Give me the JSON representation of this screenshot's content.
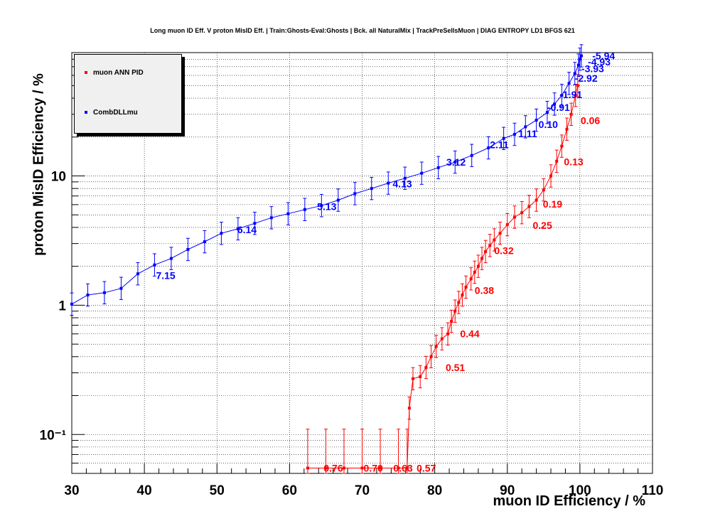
{
  "title": "Long muon ID Eff. V proton MisID Eff. | Train:Ghosts-Eval:Ghosts | Bck. all NaturalMix | TrackPreSellsMuon | DIAG ENTROPY LD1 BFGS 621",
  "legend": [
    {
      "label": "muon ANN PID",
      "color": "#ff0000"
    },
    {
      "label": "CombDLLmu",
      "color": "#0000ff"
    }
  ],
  "chart_data": {
    "type": "line",
    "title": "Long muon ID Eff. V proton MisID Eff. | Train:Ghosts-Eval:Ghosts | Bck. all NaturalMix | TrackPreSellsMuon | DIAG ENTROPY LD1 BFGS 621",
    "xlabel": "muon ID Efficiency / %",
    "ylabel": "proton MisID Efficiency / %",
    "xlim": [
      30,
      110
    ],
    "ylim": [
      0.05,
      90
    ],
    "yscale": "log",
    "grid": true,
    "legend_position": "top-left",
    "x_ticks": [
      30,
      40,
      50,
      60,
      70,
      80,
      90,
      100,
      110
    ],
    "x_tick_labels": [
      "30",
      "40",
      "50",
      "60",
      "70",
      "80",
      "90",
      "100",
      "110"
    ],
    "y_ticks": [
      0.1,
      1,
      10
    ],
    "y_tick_labels": [
      "10⁻¹",
      "1",
      "10"
    ],
    "series": [
      {
        "name": "muon ANN PID",
        "color": "#ff0000",
        "points": [
          [
            62.5,
            0.055
          ],
          [
            65,
            0.055
          ],
          [
            67.5,
            0.055
          ],
          [
            70,
            0.055
          ],
          [
            72.5,
            0.055
          ],
          [
            75,
            0.055
          ],
          [
            76.2,
            0.055
          ],
          [
            76.5,
            0.16
          ],
          [
            77,
            0.27
          ],
          [
            78,
            0.28
          ],
          [
            78.8,
            0.33
          ],
          [
            79.5,
            0.4
          ],
          [
            80.2,
            0.48
          ],
          [
            81,
            0.55
          ],
          [
            81.8,
            0.6
          ],
          [
            82.3,
            0.75
          ],
          [
            82.8,
            0.9
          ],
          [
            83.3,
            1.05
          ],
          [
            83.8,
            1.2
          ],
          [
            84.3,
            1.38
          ],
          [
            85,
            1.6
          ],
          [
            85.5,
            1.8
          ],
          [
            86,
            2.0
          ],
          [
            86.5,
            2.3
          ],
          [
            87,
            2.6
          ],
          [
            87.6,
            2.9
          ],
          [
            88.2,
            3.2
          ],
          [
            89,
            3.6
          ],
          [
            90,
            4.2
          ],
          [
            91,
            4.8
          ],
          [
            92,
            5.2
          ],
          [
            93,
            5.8
          ],
          [
            94,
            6.5
          ],
          [
            95,
            7.8
          ],
          [
            96,
            10
          ],
          [
            96.8,
            13
          ],
          [
            97.5,
            17
          ],
          [
            98.2,
            23
          ],
          [
            98.8,
            30
          ],
          [
            99.4,
            42
          ],
          [
            99.7,
            50
          ]
        ],
        "labels": [
          {
            "x": 64.7,
            "y": 0.055,
            "text": "0.76"
          },
          {
            "x": 70.2,
            "y": 0.055,
            "text": "0.70"
          },
          {
            "x": 74.3,
            "y": 0.055,
            "text": "0.63"
          },
          {
            "x": 77.5,
            "y": 0.055,
            "text": "0.57"
          },
          {
            "x": 81.5,
            "y": 0.33,
            "text": "0.51"
          },
          {
            "x": 83.5,
            "y": 0.6,
            "text": "0.44"
          },
          {
            "x": 85.5,
            "y": 1.3,
            "text": "0.38"
          },
          {
            "x": 88.2,
            "y": 2.65,
            "text": "0.32"
          },
          {
            "x": 93.5,
            "y": 4.15,
            "text": "0.25"
          },
          {
            "x": 94.9,
            "y": 6.05,
            "text": "0.19"
          },
          {
            "x": 97.8,
            "y": 12.9,
            "text": "0.13"
          },
          {
            "x": 100.1,
            "y": 26.9,
            "text": "0.06"
          }
        ]
      },
      {
        "name": "CombDLLmu",
        "color": "#0000ff",
        "points": [
          [
            30,
            1.02
          ],
          [
            32.2,
            1.2
          ],
          [
            34.5,
            1.25
          ],
          [
            36.8,
            1.35
          ],
          [
            39.1,
            1.75
          ],
          [
            41.4,
            2.05
          ],
          [
            43.7,
            2.3
          ],
          [
            46,
            2.7
          ],
          [
            48.3,
            3.1
          ],
          [
            50.6,
            3.6
          ],
          [
            52.9,
            3.9
          ],
          [
            55.2,
            4.3
          ],
          [
            57.5,
            4.75
          ],
          [
            59.8,
            5.1
          ],
          [
            62.1,
            5.5
          ],
          [
            64.4,
            5.9
          ],
          [
            66.7,
            6.5
          ],
          [
            69,
            7.3
          ],
          [
            71.3,
            8.0
          ],
          [
            73.6,
            8.8
          ],
          [
            75.9,
            9.6
          ],
          [
            78.2,
            10.5
          ],
          [
            80.5,
            11.6
          ],
          [
            82.8,
            12.8
          ],
          [
            85.1,
            14.4
          ],
          [
            87.4,
            16.5
          ],
          [
            89.5,
            19.5
          ],
          [
            91,
            21
          ],
          [
            92.5,
            24
          ],
          [
            94,
            27
          ],
          [
            95.5,
            31
          ],
          [
            96.5,
            36
          ],
          [
            97.5,
            42
          ],
          [
            98.5,
            52
          ],
          [
            99.3,
            62
          ],
          [
            99.8,
            72
          ],
          [
            100,
            80
          ],
          [
            100.2,
            85
          ]
        ],
        "labels": [
          {
            "x": 41.6,
            "y": 1.7,
            "text": "7.15"
          },
          {
            "x": 52.8,
            "y": 3.85,
            "text": "6.14"
          },
          {
            "x": 63.8,
            "y": 5.8,
            "text": "5.13"
          },
          {
            "x": 74.2,
            "y": 8.7,
            "text": "4.13"
          },
          {
            "x": 81.6,
            "y": 12.8,
            "text": "3.12"
          },
          {
            "x": 87.6,
            "y": 17.5,
            "text": "2.11"
          },
          {
            "x": 91.5,
            "y": 21.3,
            "text": "1.11"
          },
          {
            "x": 94.3,
            "y": 25.1,
            "text": "0.10"
          },
          {
            "x": 95.5,
            "y": 33.9,
            "text": "-0.91"
          },
          {
            "x": 97.2,
            "y": 42.7,
            "text": "-1.91"
          },
          {
            "x": 99.3,
            "y": 57,
            "text": "-2.92"
          },
          {
            "x": 100.2,
            "y": 67.5,
            "text": "-3.93"
          },
          {
            "x": 101.1,
            "y": 76.2,
            "text": "-4.93"
          },
          {
            "x": 101.7,
            "y": 84.9,
            "text": "-5.94"
          }
        ]
      }
    ]
  }
}
